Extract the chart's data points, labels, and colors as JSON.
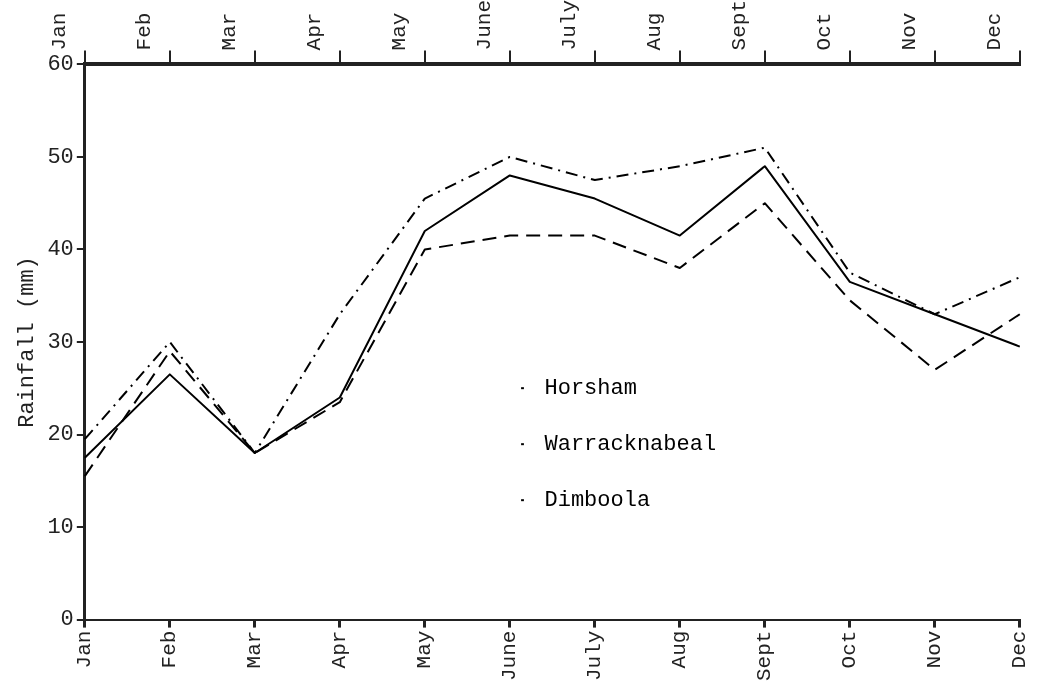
{
  "chart_data": {
    "type": "line",
    "ylabel": "Rainfall (mm)",
    "categories": [
      "Jan",
      "Feb",
      "Mar",
      "Apr",
      "May",
      "June",
      "July",
      "Aug",
      "Sept",
      "Oct",
      "Nov",
      "Dec"
    ],
    "series": [
      {
        "name": "Horsham",
        "color": "#000000",
        "line_style": "dashdot",
        "values": [
          19.5,
          30,
          18,
          33,
          45.5,
          50,
          47.5,
          49,
          51,
          37.5,
          33,
          37
        ]
      },
      {
        "name": "Warracknabeal",
        "color": "#000000",
        "line_style": "dashed",
        "values": [
          15.5,
          29,
          18,
          23.5,
          40,
          41.5,
          41.5,
          38,
          45,
          34.5,
          27,
          33
        ]
      },
      {
        "name": "Dimboola",
        "color": "#000000",
        "line_style": "solid",
        "values": [
          17.5,
          26.5,
          18,
          24,
          42,
          48,
          45.5,
          41.5,
          49,
          36.5,
          33,
          29.5
        ]
      }
    ],
    "ylim": [
      0,
      60
    ],
    "yticks": [
      0,
      10,
      20,
      30,
      40,
      50,
      60
    ],
    "grid": false,
    "legend": "bottom right",
    "marker": "none"
  }
}
